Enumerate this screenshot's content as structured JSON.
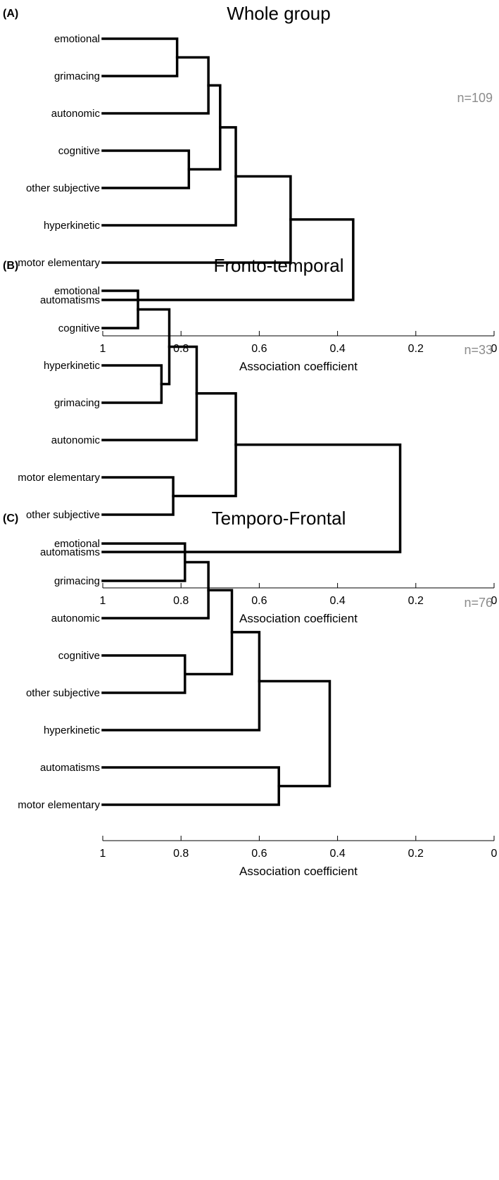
{
  "chart_data": [
    {
      "type": "dendrogram",
      "panel": "(A)",
      "title": "Whole group",
      "n_label": "n=109",
      "xlabel": "Association coefficient",
      "xlim": [
        1,
        0
      ],
      "xticks": [
        "1",
        "0.8",
        "0.6",
        "0.4",
        "0.2",
        "0"
      ],
      "leaves": [
        "emotional",
        "grimacing",
        "autonomic",
        "cognitive",
        "other subjective",
        "hyperkinetic",
        "motor elementary",
        "automatisms"
      ],
      "merges": [
        {
          "a": "emotional",
          "b": "grimacing",
          "height": 0.81
        },
        {
          "a": "cognitive",
          "b": "other subjective",
          "height": 0.78
        },
        {
          "a": 0,
          "b": "autonomic",
          "height": 0.73
        },
        {
          "a": 2,
          "b": 1,
          "height": 0.7
        },
        {
          "a": 3,
          "b": "hyperkinetic",
          "height": 0.66
        },
        {
          "a": 4,
          "b": "motor elementary",
          "height": 0.52
        },
        {
          "a": 5,
          "b": "automatisms",
          "height": 0.36
        }
      ]
    },
    {
      "type": "dendrogram",
      "panel": "(B)",
      "title": "Fronto-temporal",
      "n_label": "n=33",
      "xlabel": "Association coefficient",
      "xlim": [
        1,
        0
      ],
      "xticks": [
        "1",
        "0.8",
        "0.6",
        "0.4",
        "0.2",
        "0"
      ],
      "leaves": [
        "emotional",
        "cognitive",
        "hyperkinetic",
        "grimacing",
        "autonomic",
        "motor elementary",
        "other subjective",
        "automatisms"
      ],
      "merges": [
        {
          "a": "emotional",
          "b": "cognitive",
          "height": 0.91
        },
        {
          "a": "hyperkinetic",
          "b": "grimacing",
          "height": 0.85
        },
        {
          "a": 0,
          "b": 1,
          "height": 0.83
        },
        {
          "a": "motor elementary",
          "b": "other subjective",
          "height": 0.82
        },
        {
          "a": 2,
          "b": "autonomic",
          "height": 0.76
        },
        {
          "a": 4,
          "b": 3,
          "height": 0.66
        },
        {
          "a": 5,
          "b": "automatisms",
          "height": 0.24
        }
      ]
    },
    {
      "type": "dendrogram",
      "panel": "(C)",
      "title": "Temporo-Frontal",
      "n_label": "n=76",
      "xlabel": "Association coefficient",
      "xlim": [
        1,
        0
      ],
      "xticks": [
        "1",
        "0.8",
        "0.6",
        "0.4",
        "0.2",
        "0"
      ],
      "leaves": [
        "emotional",
        "grimacing",
        "autonomic",
        "cognitive",
        "other subjective",
        "hyperkinetic",
        "automatisms",
        "motor elementary"
      ],
      "merges": [
        {
          "a": "emotional",
          "b": "grimacing",
          "height": 0.79
        },
        {
          "a": "cognitive",
          "b": "other subjective",
          "height": 0.79
        },
        {
          "a": 0,
          "b": "autonomic",
          "height": 0.73
        },
        {
          "a": 2,
          "b": 1,
          "height": 0.67
        },
        {
          "a": 3,
          "b": "hyperkinetic",
          "height": 0.6
        },
        {
          "a": "automatisms",
          "b": "motor elementary",
          "height": 0.55
        },
        {
          "a": 4,
          "b": 5,
          "height": 0.42
        }
      ]
    }
  ]
}
